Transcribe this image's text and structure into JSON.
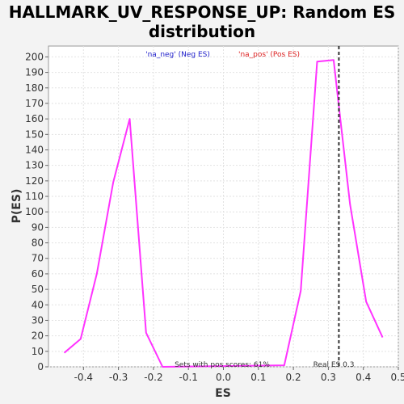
{
  "chart_data": {
    "type": "line",
    "title_line1": "HALLMARK_UV_RESPONSE_UP: Random ES",
    "title_line2": "distribution",
    "xlabel": "ES",
    "ylabel": "P(ES)",
    "xlim": [
      -0.5,
      0.5
    ],
    "ylim": [
      0,
      207
    ],
    "x_ticks": [
      -0.4,
      -0.3,
      -0.2,
      -0.1,
      0.0,
      0.1,
      0.2,
      0.3,
      0.4,
      0.5
    ],
    "x_tick_labels": [
      "-0.4",
      "-0.3",
      "-0.2",
      "-0.1",
      "0.0",
      "0.1",
      "0.2",
      "0.3",
      "0.4",
      "0.5"
    ],
    "y_ticks": [
      0,
      10,
      20,
      30,
      40,
      50,
      60,
      70,
      80,
      90,
      100,
      110,
      120,
      130,
      140,
      150,
      160,
      170,
      180,
      190,
      200
    ],
    "grid": true,
    "series": [
      {
        "color": "#ff33ff",
        "x": [
          -0.455,
          -0.408,
          -0.362,
          -0.315,
          -0.268,
          -0.221,
          -0.174,
          0.174,
          0.221,
          0.268,
          0.315,
          0.362,
          0.408,
          0.455
        ],
        "y": [
          9,
          18,
          60,
          119,
          160,
          22,
          0,
          1,
          49,
          197,
          198,
          105,
          42,
          19
        ]
      }
    ],
    "real_es": 0.33,
    "legend": {
      "neg_label": "'na_neg' (Neg ES)",
      "pos_label": "'na_pos' (Pos ES)",
      "neg_color": "#2222cc",
      "pos_color": "#dd2222"
    },
    "annotations": {
      "pos_scores": "Sets with pos scores: 61%",
      "real_es_label": "Real ES 0.3"
    }
  }
}
